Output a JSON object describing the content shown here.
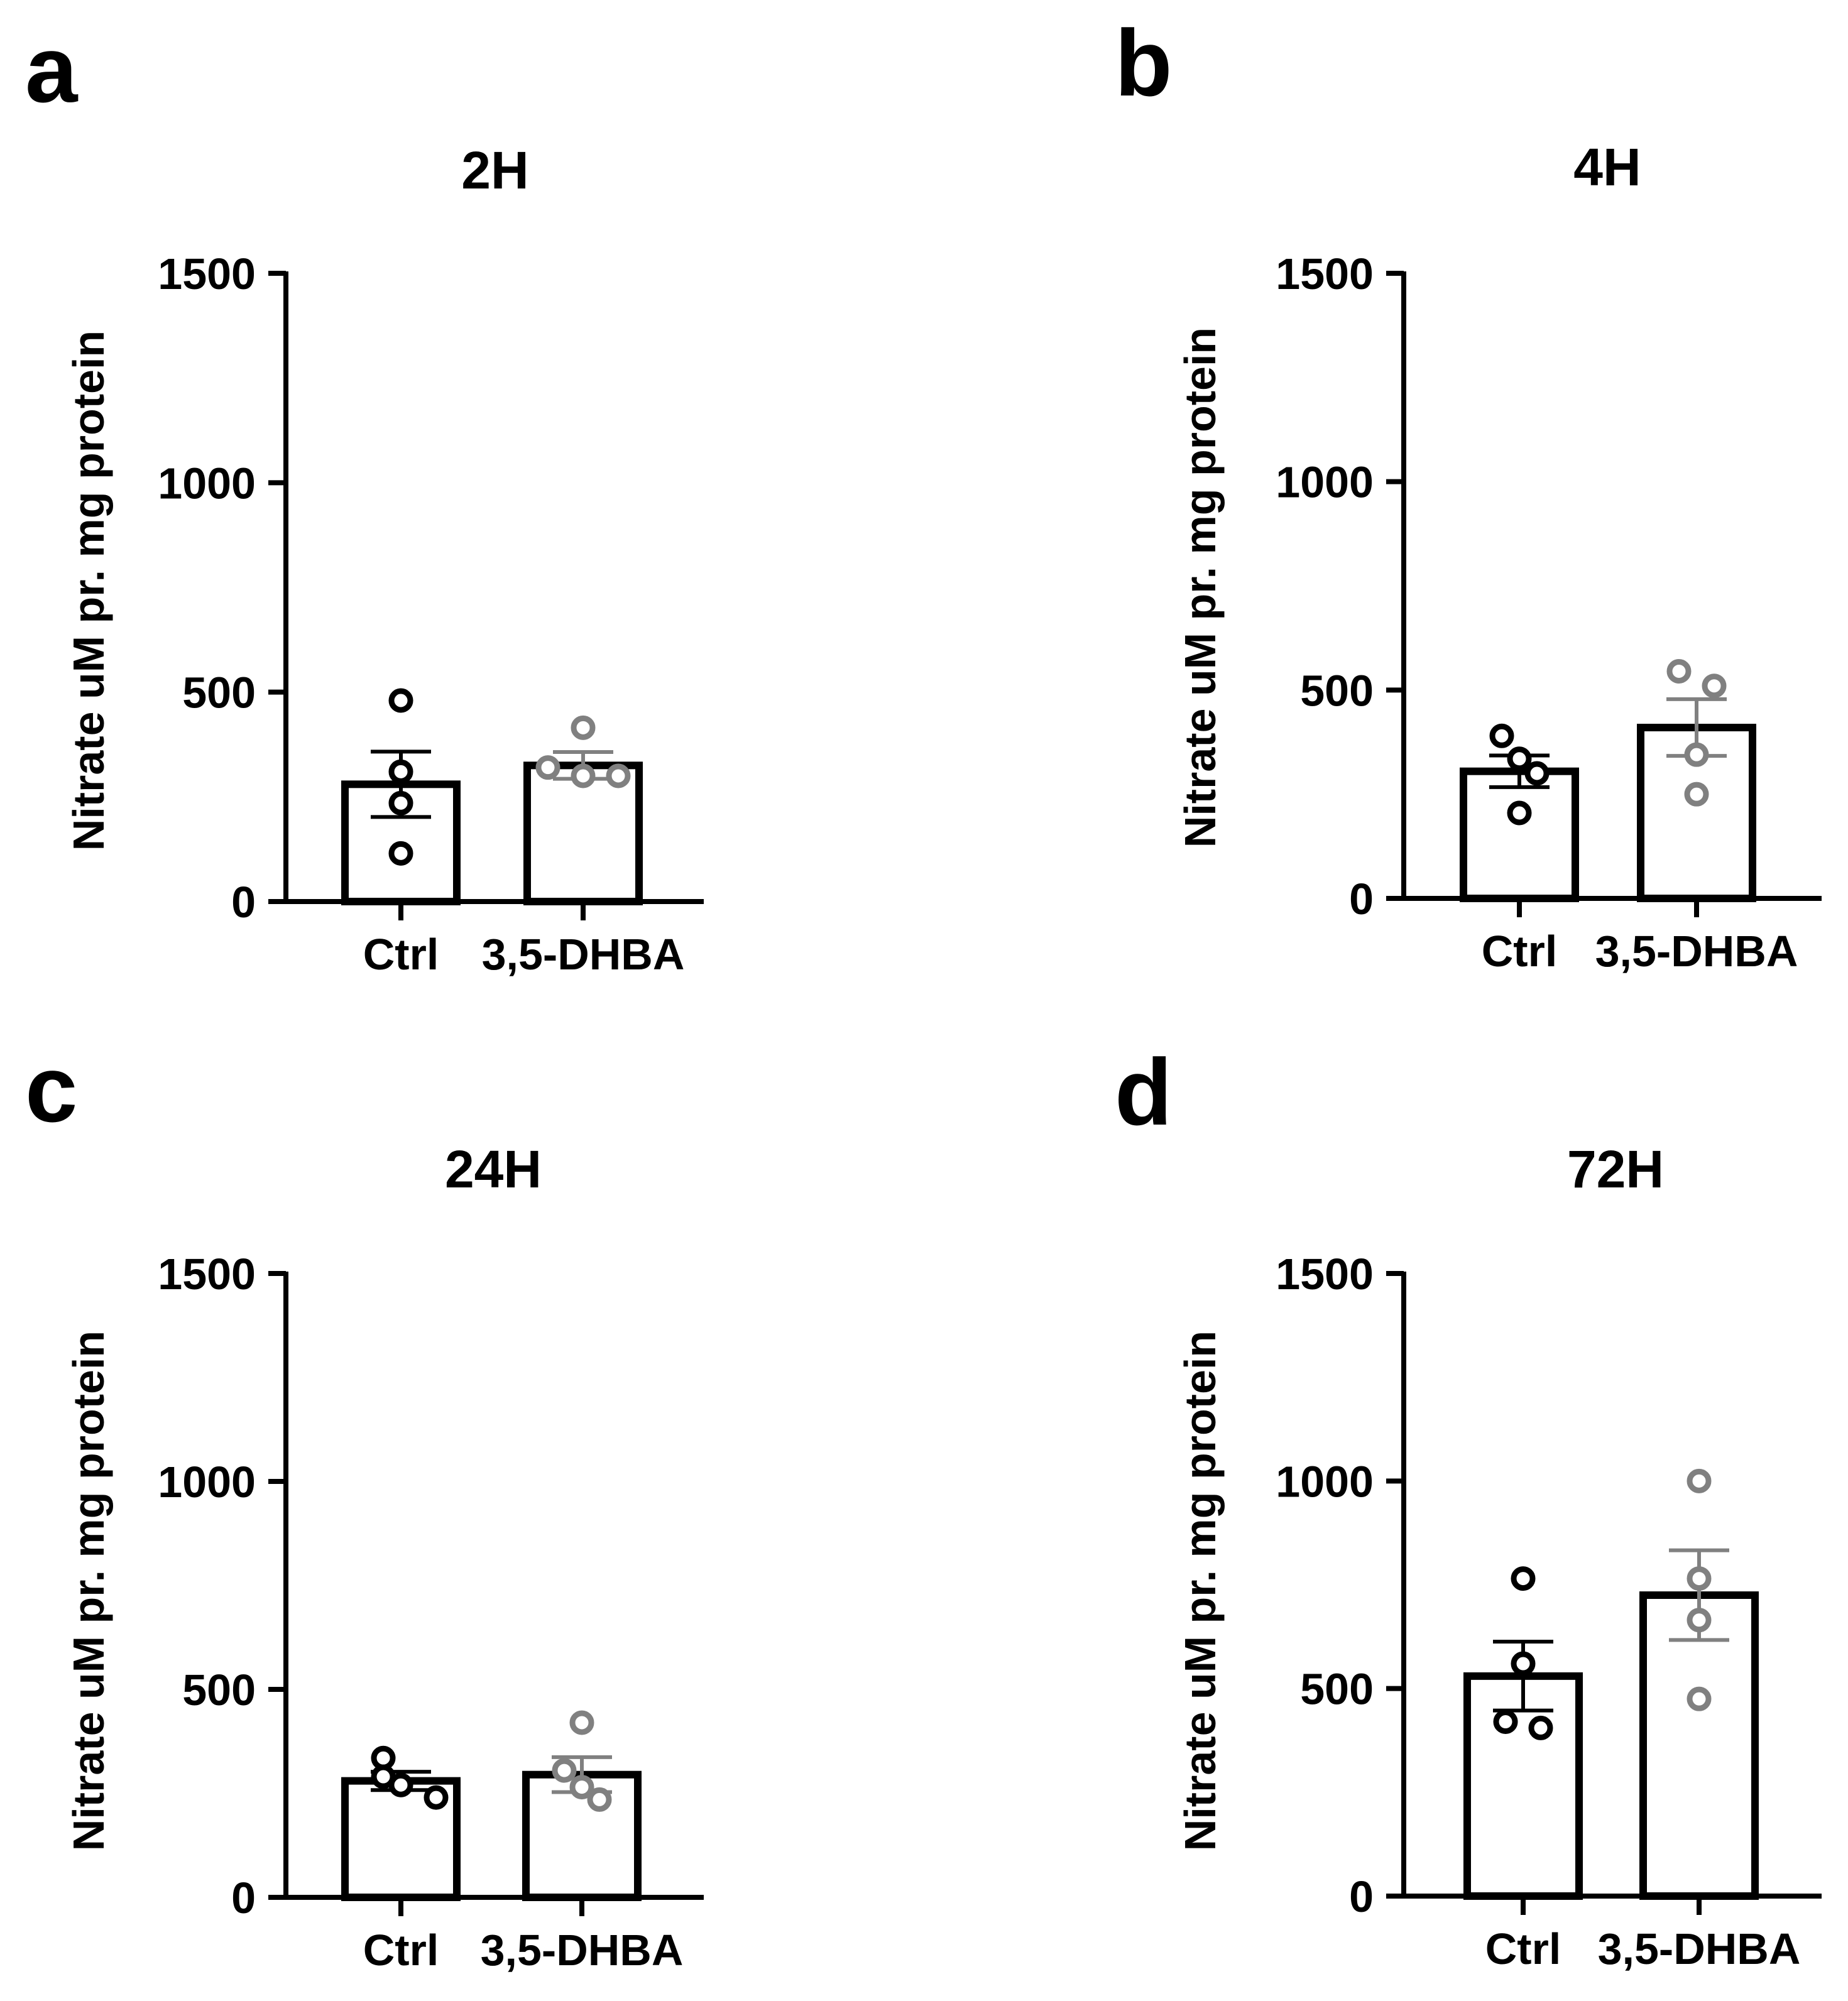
{
  "figure": {
    "panels": [
      {
        "letter": "a",
        "title": "2H",
        "ylabel": "Nitrate uM  pr. mg protein"
      },
      {
        "letter": "b",
        "title": "4H",
        "ylabel": "Nitrate uM  pr. mg protein"
      },
      {
        "letter": "c",
        "title": "24H",
        "ylabel": "Nitrate uM  pr. mg protein"
      },
      {
        "letter": "d",
        "title": "72H",
        "ylabel": "Nitrate uM  pr. mg protein"
      }
    ]
  },
  "colors": {
    "ctrl": "#000000",
    "treated": "#808080"
  },
  "chart_data": [
    {
      "type": "bar",
      "title": "2H",
      "ylabel": "Nitrate uM  pr. mg protein",
      "categories": [
        "Ctrl",
        "3,5-DHBA"
      ],
      "ylim": [
        0,
        1500
      ],
      "yticks": [
        0,
        500,
        1000,
        1500
      ],
      "values": [
        280,
        325
      ],
      "error_sem": [
        78,
        32
      ],
      "points": [
        [
          480,
          310,
          235,
          115
        ],
        [
          415,
          320,
          300,
          300
        ]
      ]
    },
    {
      "type": "bar",
      "title": "4H",
      "ylabel": "Nitrate uM  pr. mg protein",
      "categories": [
        "Ctrl",
        "3,5-DHBA"
      ],
      "ylim": [
        0,
        1500
      ],
      "yticks": [
        0,
        500,
        1000,
        1500
      ],
      "values": [
        305,
        410
      ],
      "error_sem": [
        38,
        68
      ],
      "points": [
        [
          390,
          335,
          300,
          205
        ],
        [
          545,
          510,
          345,
          250
        ]
      ]
    },
    {
      "type": "bar",
      "title": "24H",
      "ylabel": "Nitrate uM  pr. mg protein",
      "categories": [
        "Ctrl",
        "3,5-DHBA"
      ],
      "ylim": [
        0,
        1500
      ],
      "yticks": [
        0,
        500,
        1000,
        1500
      ],
      "values": [
        280,
        295
      ],
      "error_sem": [
        22,
        42
      ],
      "points": [
        [
          335,
          290,
          270,
          240
        ],
        [
          420,
          305,
          265,
          235
        ]
      ]
    },
    {
      "type": "bar",
      "title": "72H",
      "ylabel": "Nitrate uM  pr. mg protein",
      "categories": [
        "Ctrl",
        "3,5-DHBA"
      ],
      "ylim": [
        0,
        1500
      ],
      "yticks": [
        0,
        500,
        1000,
        1500
      ],
      "values": [
        530,
        725
      ],
      "error_sem": [
        83,
        108
      ],
      "points": [
        [
          765,
          560,
          420,
          405
        ],
        [
          1000,
          765,
          665,
          475
        ]
      ]
    }
  ]
}
